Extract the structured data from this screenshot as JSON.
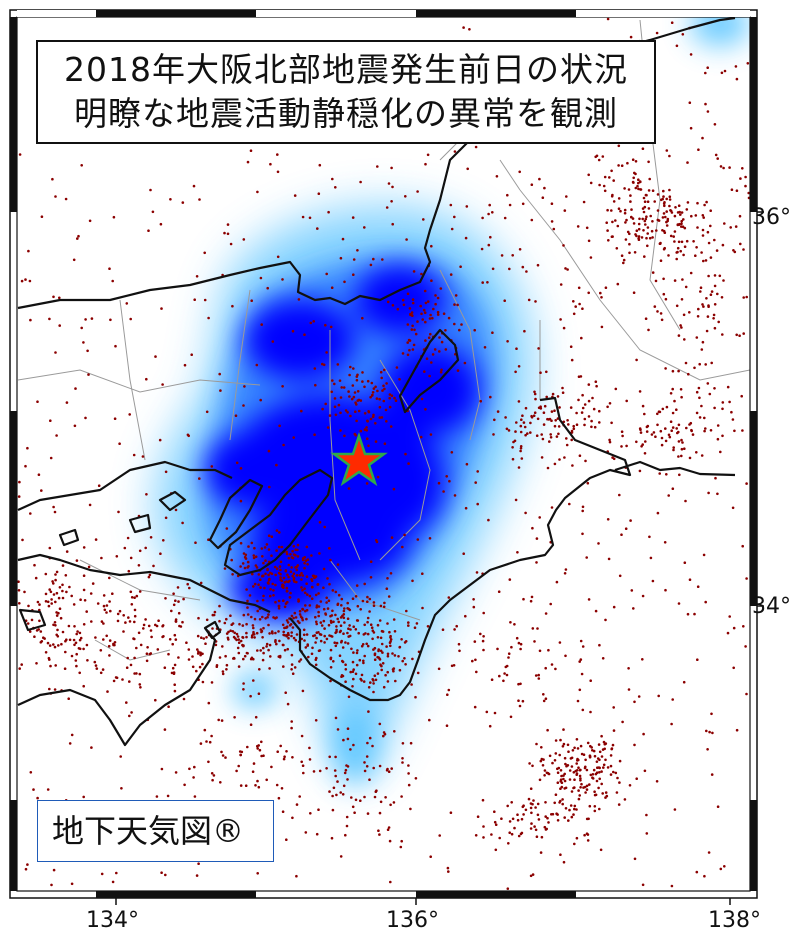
{
  "title": {
    "line1": "2018年大阪北部地震発生前日の状況",
    "line2": "明瞭な地震活動静穏化の異常を観測"
  },
  "brand": "地下天気図®",
  "axes": {
    "lon_ticks": [
      "134°",
      "136°",
      "138°"
    ],
    "lat_ticks": [
      "36°",
      "34°"
    ]
  },
  "epicenter": {
    "marker": "star-icon"
  },
  "colors": {
    "anomaly": "#0000ff",
    "anomaly_edge": "#40a8ff",
    "quake_dots": "#8b0000",
    "coastline": "#111111",
    "boundaries": "#9a9a9a",
    "star_fill": "#ff2a00",
    "star_edge": "#2fa84a",
    "brand_border": "#1f5bb8"
  }
}
